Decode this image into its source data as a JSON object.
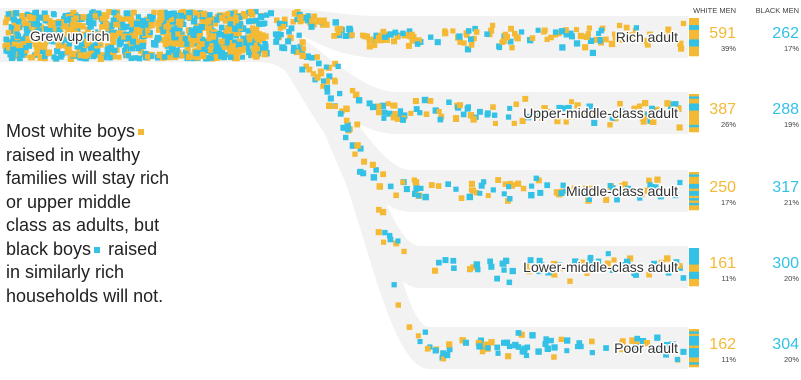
{
  "colors": {
    "white_men": "#f4b935",
    "black_men": "#33c1e6",
    "band": "#f2f2f2"
  },
  "annotation": {
    "part1": "Most white boys",
    "part2": "raised in wealthy families will stay rich or upper middle class as adults, but black boys",
    "part3": "raised in similarly rich households will not."
  },
  "chart_data": {
    "type": "flow",
    "origin_label": "Grew up rich",
    "columns": [
      "WHITE MEN",
      "BLACK MEN"
    ],
    "outcomes": [
      {
        "label": "Rich adult",
        "white": {
          "value": "591",
          "pct": "39%"
        },
        "black": {
          "value": "262",
          "pct": "17%"
        }
      },
      {
        "label": "Upper-middle-class adult",
        "white": {
          "value": "387",
          "pct": "26%"
        },
        "black": {
          "value": "288",
          "pct": "19%"
        }
      },
      {
        "label": "Middle-class adult",
        "white": {
          "value": "250",
          "pct": "17%"
        },
        "black": {
          "value": "317",
          "pct": "21%"
        }
      },
      {
        "label": "Lower-middle-class adult",
        "white": {
          "value": "161",
          "pct": "11%"
        },
        "black": {
          "value": "300",
          "pct": "20%"
        }
      },
      {
        "label": "Poor adult",
        "white": {
          "value": "162",
          "pct": "11%"
        },
        "black": {
          "value": "304",
          "pct": "20%"
        }
      }
    ]
  }
}
